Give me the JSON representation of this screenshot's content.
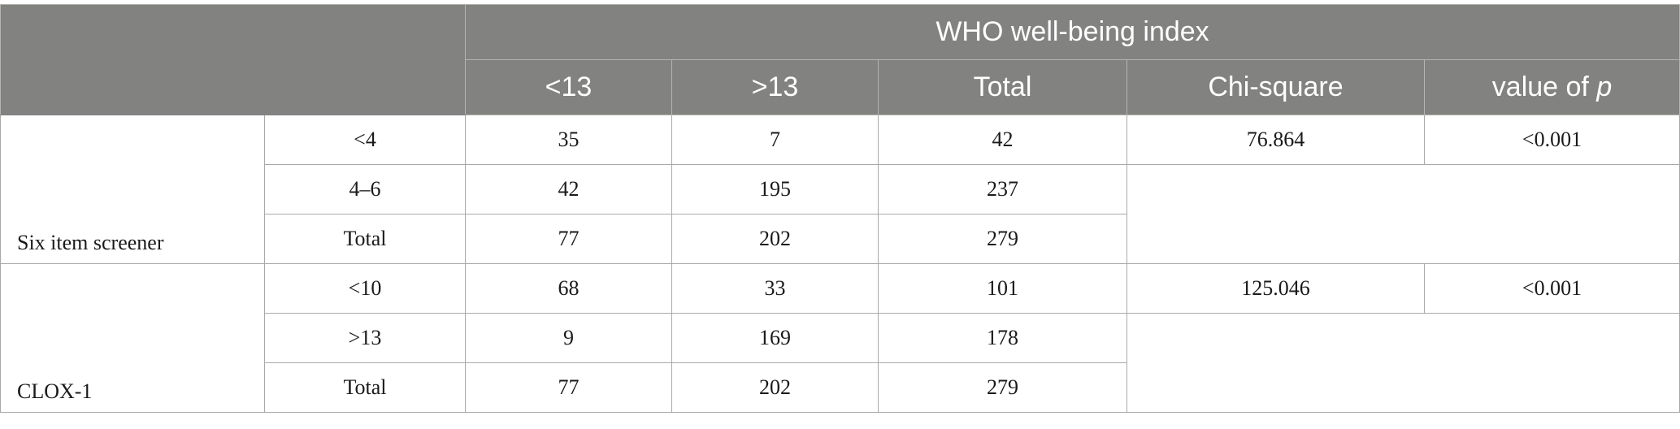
{
  "table": {
    "header": {
      "group_title": "WHO well-being index",
      "columns": [
        "<13",
        ">13",
        "Total",
        "Chi-square"
      ],
      "p_col_prefix": "value of ",
      "p_col_italic": "p"
    },
    "groups": [
      {
        "label": "Six item screener",
        "rows": [
          {
            "category": "<4",
            "lt13": "35",
            "gt13": "7",
            "total": "42",
            "chi_square": "76.864",
            "p_value": "<0.001"
          },
          {
            "category": "4–6",
            "lt13": "42",
            "gt13": "195",
            "total": "237"
          },
          {
            "category": "Total",
            "lt13": "77",
            "gt13": "202",
            "total": "279"
          }
        ]
      },
      {
        "label": "CLOX-1",
        "rows": [
          {
            "category": "<10",
            "lt13": "68",
            "gt13": "33",
            "total": "101",
            "chi_square": "125.046",
            "p_value": "<0.001"
          },
          {
            "category": ">13",
            "lt13": "9",
            "gt13": "169",
            "total": "178"
          },
          {
            "category": "Total",
            "lt13": "77",
            "gt13": "202",
            "total": "279"
          }
        ]
      }
    ]
  }
}
